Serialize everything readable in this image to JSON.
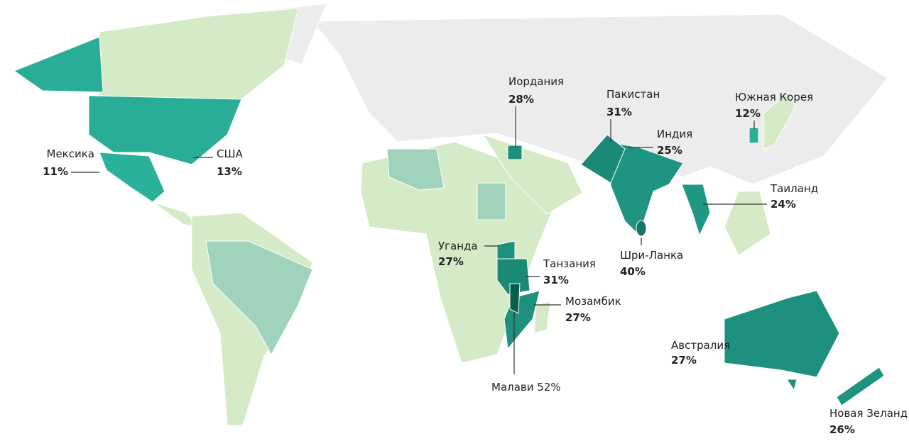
{
  "countries": [
    {
      "name": "Мексика",
      "value": 11,
      "value_label": "11%"
    },
    {
      "name": "США",
      "value": 13,
      "value_label": "13%"
    },
    {
      "name": "Иордания",
      "value": 28,
      "value_label": "28%"
    },
    {
      "name": "Пакистан",
      "value": 31,
      "value_label": "31%"
    },
    {
      "name": "Индия",
      "value": 25,
      "value_label": "25%"
    },
    {
      "name": "Южная Корея",
      "value": 12,
      "value_label": "12%"
    },
    {
      "name": "Таиланд",
      "value": 24,
      "value_label": "24%"
    },
    {
      "name": "Уганда",
      "value": 27,
      "value_label": "27%"
    },
    {
      "name": "Танзания",
      "value": 31,
      "value_label": "31%"
    },
    {
      "name": "Шри-Ланка",
      "value": 40,
      "value_label": "40%"
    },
    {
      "name": "Мозамбик",
      "value": 27,
      "value_label": "27%"
    },
    {
      "name": "Австралия",
      "value": 27,
      "value_label": "27%"
    },
    {
      "name": "Малави",
      "value": 52,
      "value_label": "52%"
    },
    {
      "name": "Новая Зеланд",
      "value": 26,
      "value_label": "26%"
    }
  ]
}
